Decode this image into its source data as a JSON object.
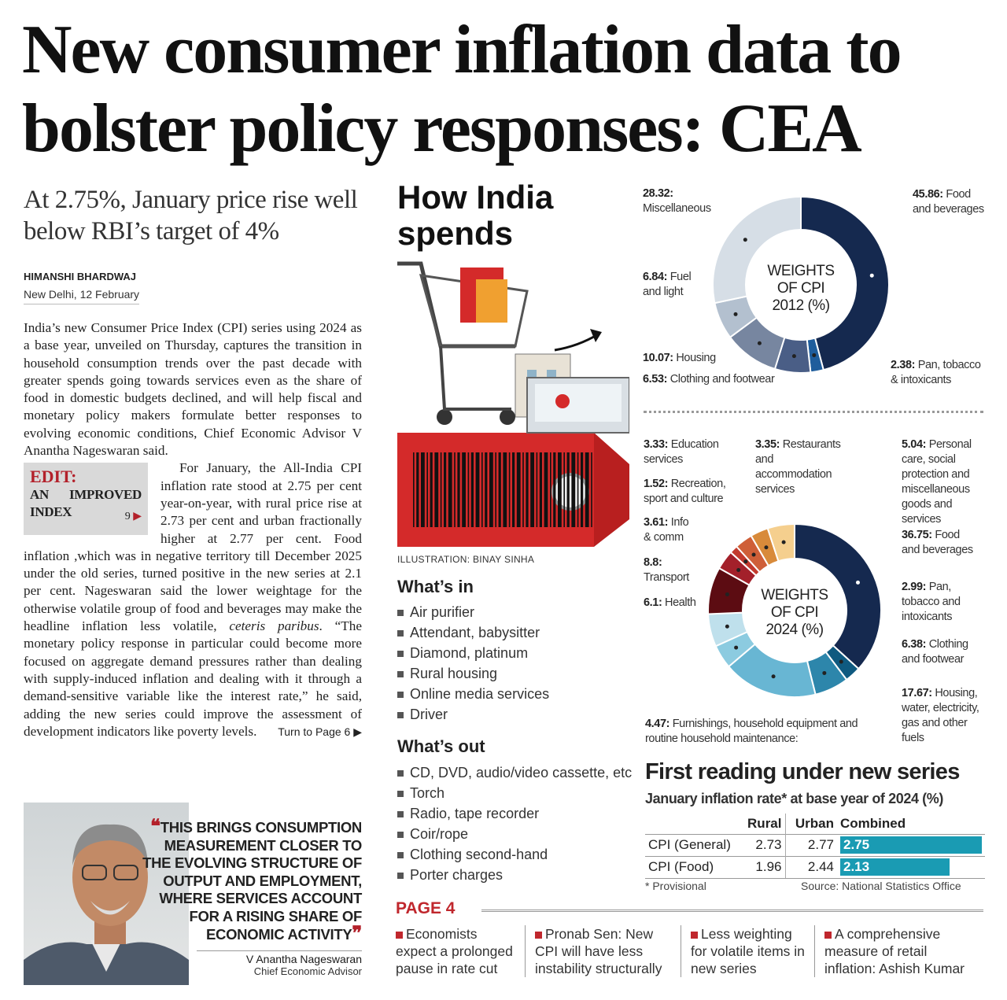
{
  "headline": "New consumer inflation data to bolster policy responses: CEA",
  "subhead": "At 2.75%, January price rise well below RBI’s target of 4%",
  "byline": "HIMANSHI BHARDWAJ",
  "dateline": "New Delhi, 12 February",
  "body": {
    "p1": "India’s new Consumer Price Index (CPI) series using 2024 as a base year, unveiled on Thursday, captures the transition in household consumption trends over the past decade with greater spends going towards services even as the share of food in domestic budgets declined, and will help fiscal and monetary policy makers formulate better responses to evolving economic conditions, Chief Economic Advisor V Anantha Nageswaran said.",
    "p2a": "For January, the All-India CPI inflation rate stood at 2.75 per cent year-on-year, with rural price rise at 2.73 per cent and urban fractionally higher at 2.77 per cent. Food inflation ,which was in negative territory till December 2025 under the old series, turned positive in the new series at 2.1 per cent. Nageswaran said the lower weightage for the otherwise volatile group of food and beverages may make the headline inflation less volatile, ",
    "p2italic": "ceteris paribus",
    "p2b": ". “The monetary policy response in particular could become more focused on aggregate demand pressures rather than dealing with supply-induced inflation and dealing with it through a demand-sensitive variable like the interest rate,” he said, adding the new series could improve the assessment of development indicators like poverty levels.",
    "turn": "Turn to Page 6"
  },
  "edit": {
    "label": "EDIT:",
    "title": "AN IMPROVED INDEX",
    "page": "9"
  },
  "quote": {
    "text": "THIS BRINGS CONSUMPTION MEASUREMENT CLOSER TO THE EVOLVING STRUCTURE OF OUTPUT AND EMPLOYMENT, WHERE SERVICES ACCOUNT FOR A RISING SHARE OF ECONOMIC ACTIVITY",
    "name": "V Anantha Nageswaran",
    "role": "Chief Economic Advisor"
  },
  "how": {
    "title": "How India spends",
    "caption": "ILLUSTRATION: BINAY SINHA",
    "in_title": "What’s in",
    "in_items": [
      "Air purifier",
      "Attendant, babysitter",
      "Diamond, platinum",
      "Rural housing",
      "Online media services",
      "Driver"
    ],
    "out_title": "What’s out",
    "out_items": [
      "CD, DVD, audio/video cassette, etc",
      "Torch",
      "Radio, tape recorder",
      "Coir/rope",
      "Clothing second-hand",
      "Porter charges"
    ]
  },
  "chart_data": [
    {
      "type": "pie",
      "title": "WEIGHTS OF CPI 2012 (%)",
      "title_lines": [
        "WEIGHTS",
        "OF CPI",
        "2012 (%)"
      ],
      "slices": [
        {
          "value": 45.86,
          "vlabel": "45.86:",
          "label": "Food and beverages",
          "color": "#15294f"
        },
        {
          "value": 2.38,
          "vlabel": "2.38:",
          "label": "Pan, tobacco & intoxicants",
          "color": "#1f5d9c"
        },
        {
          "value": 6.53,
          "vlabel": "6.53:",
          "label": "Clothing and footwear",
          "color": "#4a5e86"
        },
        {
          "value": 10.07,
          "vlabel": "10.07:",
          "label": "Housing",
          "color": "#7786a0"
        },
        {
          "value": 6.84,
          "vlabel": "6.84:",
          "label": "Fuel and light",
          "color": "#b3c0cf"
        },
        {
          "value": 28.32,
          "vlabel": "28.32:",
          "label": "Miscellaneous",
          "color": "#d6dee6"
        }
      ]
    },
    {
      "type": "pie",
      "title": "WEIGHTS OF CPI 2024 (%)",
      "title_lines": [
        "WEIGHTS",
        "OF CPI",
        "2024 (%)"
      ],
      "slices": [
        {
          "value": 36.75,
          "vlabel": "36.75:",
          "label": "Food and beverages",
          "color": "#15294f"
        },
        {
          "value": 2.99,
          "vlabel": "2.99:",
          "label": "Pan, tobacco and intoxicants",
          "color": "#0f5a80"
        },
        {
          "value": 6.38,
          "vlabel": "6.38:",
          "label": "Clothing and footwear",
          "color": "#2d86ab"
        },
        {
          "value": 17.67,
          "vlabel": "17.67:",
          "label": "Housing, water, electricity, gas and other fuels",
          "color": "#68b6d3"
        },
        {
          "value": 4.47,
          "vlabel": "4.47:",
          "label": "Furnishings, household equipment and routine household maintenance:",
          "color": "#8ccbe0"
        },
        {
          "value": 6.1,
          "vlabel": "6.1:",
          "label": "Health",
          "color": "#bfe0ec"
        },
        {
          "value": 8.8,
          "vlabel": "8.8:",
          "label": "Transport",
          "color": "#5c0c12"
        },
        {
          "value": 3.61,
          "vlabel": "3.61:",
          "label": "Info & comm",
          "color": "#a3202a"
        },
        {
          "value": 1.52,
          "vlabel": "1.52:",
          "label": "Recreation, sport and culture",
          "color": "#c23a2e"
        },
        {
          "value": 3.33,
          "vlabel": "3.33:",
          "label": "Education services",
          "color": "#cf5f38"
        },
        {
          "value": 3.35,
          "vlabel": "3.35:",
          "label": "Restaurants and accommodation services",
          "color": "#d88a3a"
        },
        {
          "value": 5.04,
          "vlabel": "5.04:",
          "label": "Personal care, social protection and miscellaneous goods and services",
          "color": "#f5cf8e"
        }
      ]
    }
  ],
  "table": {
    "title": "First reading under new series",
    "subtitle": "January inflation rate* at base year of 2024 (%)",
    "headers": [
      "",
      "Rural",
      "Urban",
      "Combined"
    ],
    "rows": [
      {
        "label": "CPI (General)",
        "rural": "2.73",
        "urban": "2.77",
        "combined": "2.75",
        "combined_value": 2.75
      },
      {
        "label": "CPI (Food)",
        "rural": "1.96",
        "urban": "2.44",
        "combined": "2.13",
        "combined_value": 2.13
      }
    ],
    "note": "* Provisional",
    "source": "Source: National Statistics Office",
    "bar_color": "#1a9bb3"
  },
  "page4": {
    "label": "PAGE 4",
    "items": [
      "Economists expect a prolonged pause in rate cut",
      "Pronab Sen: New CPI will have less instability structurally",
      "Less weighting for volatile items in new series",
      "A comprehensive measure of retail inflation: Ashish Kumar"
    ]
  }
}
